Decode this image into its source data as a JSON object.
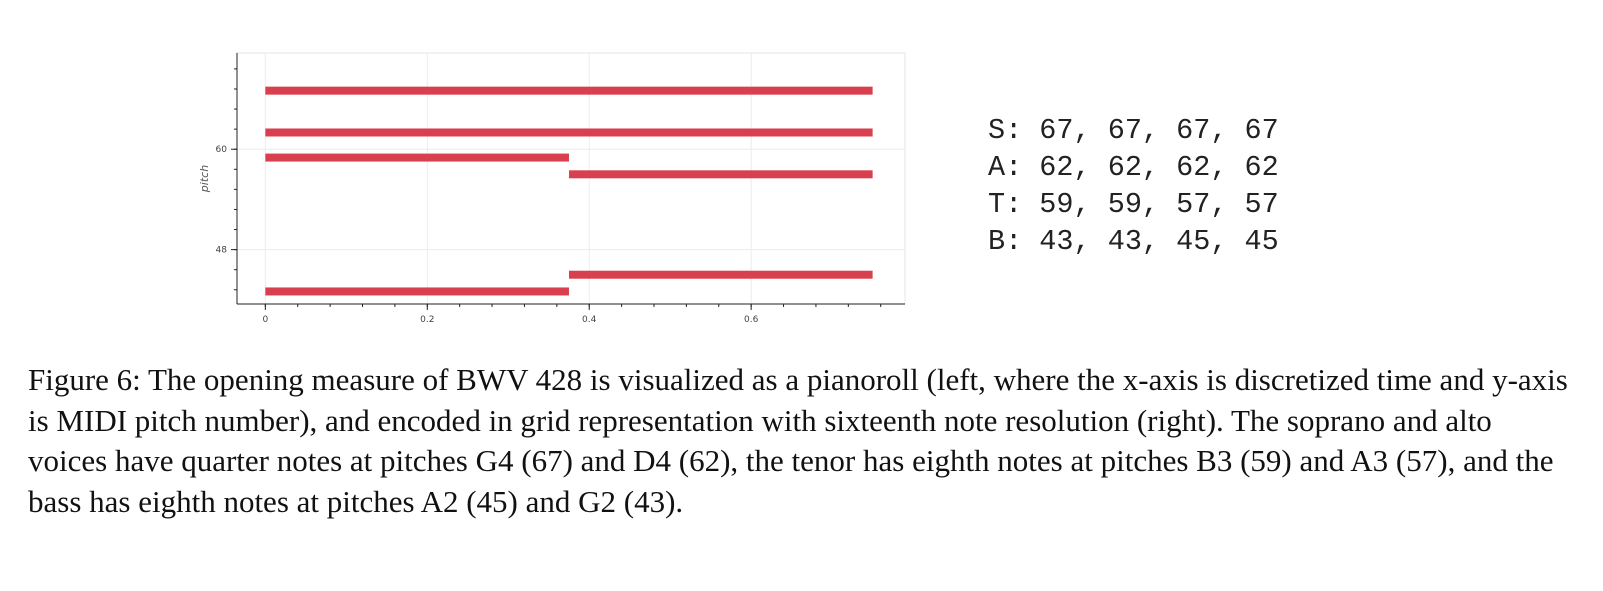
{
  "chart_data": {
    "type": "pianoroll",
    "xlabel": "",
    "ylabel": "pitch",
    "xlim": [
      -0.035,
      0.79
    ],
    "ylim": [
      41.5,
      71.5
    ],
    "x_ticks": [
      0,
      0.2,
      0.4,
      0.6
    ],
    "x_tick_labels": [
      "0",
      "0.2",
      "0.4",
      "0.6"
    ],
    "y_ticks": [
      48,
      60
    ],
    "y_tick_labels": [
      "48",
      "60"
    ],
    "grid": true,
    "bar_color": "#d9404f",
    "notes": [
      {
        "pitch": 67,
        "start": 0,
        "end": 0.75
      },
      {
        "pitch": 62,
        "start": 0,
        "end": 0.75
      },
      {
        "pitch": 59,
        "start": 0,
        "end": 0.375
      },
      {
        "pitch": 57,
        "start": 0.375,
        "end": 0.75
      },
      {
        "pitch": 45,
        "start": 0.375,
        "end": 0.75
      },
      {
        "pitch": 43,
        "start": 0,
        "end": 0.375
      }
    ]
  },
  "grid_encoding": [
    {
      "voice": "S",
      "values": [
        67,
        67,
        67,
        67
      ]
    },
    {
      "voice": "A",
      "values": [
        62,
        62,
        62,
        62
      ]
    },
    {
      "voice": "T",
      "values": [
        59,
        59,
        57,
        57
      ]
    },
    {
      "voice": "B",
      "values": [
        43,
        43,
        45,
        45
      ]
    }
  ],
  "caption": "Figure 6: The opening measure of BWV 428 is visualized as a pianoroll (left, where the x-axis is discretized time and y-axis is MIDI pitch number), and encoded in grid representation with sixteenth note resolution (right). The soprano and alto voices have quarter notes at pitches G4 (67) and D4 (62), the tenor has eighth notes at pitches B3 (59) and A3 (57), and the bass has eighth notes at pitches A2 (45) and G2 (43)."
}
